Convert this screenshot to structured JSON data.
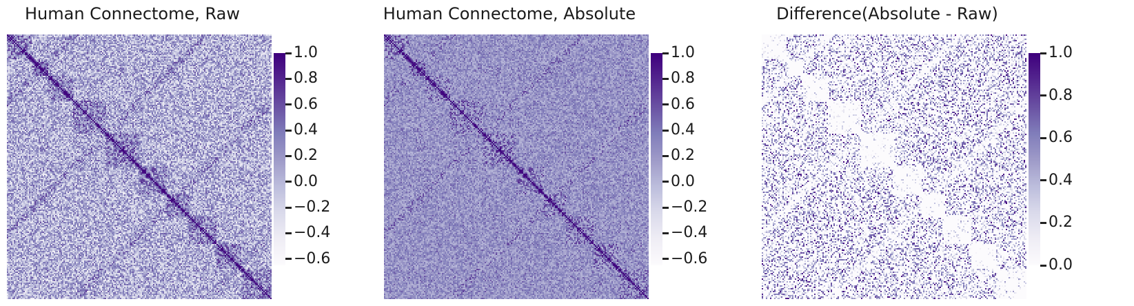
{
  "colormap": {
    "name": "Purples",
    "low": "#fcfbfd",
    "high": "#3f007d"
  },
  "panels": [
    {
      "title": "Human Connectome, Raw",
      "cbar_ticks": [
        "1.0",
        "0.8",
        "0.6",
        "0.4",
        "0.2",
        "0.0",
        "−0.2",
        "−0.4",
        "−0.6"
      ]
    },
    {
      "title": "Human Connectome, Absolute",
      "cbar_ticks": [
        "1.0",
        "0.8",
        "0.6",
        "0.4",
        "0.2",
        "0.0",
        "−0.2",
        "−0.4",
        "−0.6"
      ]
    },
    {
      "title": "Difference(Absolute - Raw)",
      "cbar_ticks": [
        "1.0",
        "0.8",
        "0.6",
        "0.4",
        "0.2",
        "0.0"
      ]
    }
  ],
  "chart_data": [
    {
      "type": "heatmap",
      "title": "Human Connectome, Raw",
      "colorbar_range": [
        -0.65,
        1.0
      ],
      "colorbar_ticks": [
        1.0,
        0.8,
        0.6,
        0.4,
        0.2,
        0.0,
        -0.2,
        -0.4,
        -0.6
      ],
      "diagonal_value": 1.0,
      "legend": "colorbar right"
    },
    {
      "type": "heatmap",
      "title": "Human Connectome, Absolute",
      "colorbar_range": [
        -0.65,
        1.0
      ],
      "colorbar_ticks": [
        1.0,
        0.8,
        0.6,
        0.4,
        0.2,
        0.0,
        -0.2,
        -0.4,
        -0.6
      ],
      "diagonal_value": 1.0,
      "legend": "colorbar right"
    },
    {
      "type": "heatmap",
      "title": "Difference(Absolute - Raw)",
      "colorbar_range": [
        0.0,
        1.0
      ],
      "colorbar_ticks": [
        1.0,
        0.8,
        0.6,
        0.4,
        0.2,
        0.0
      ],
      "legend": "colorbar right"
    }
  ]
}
